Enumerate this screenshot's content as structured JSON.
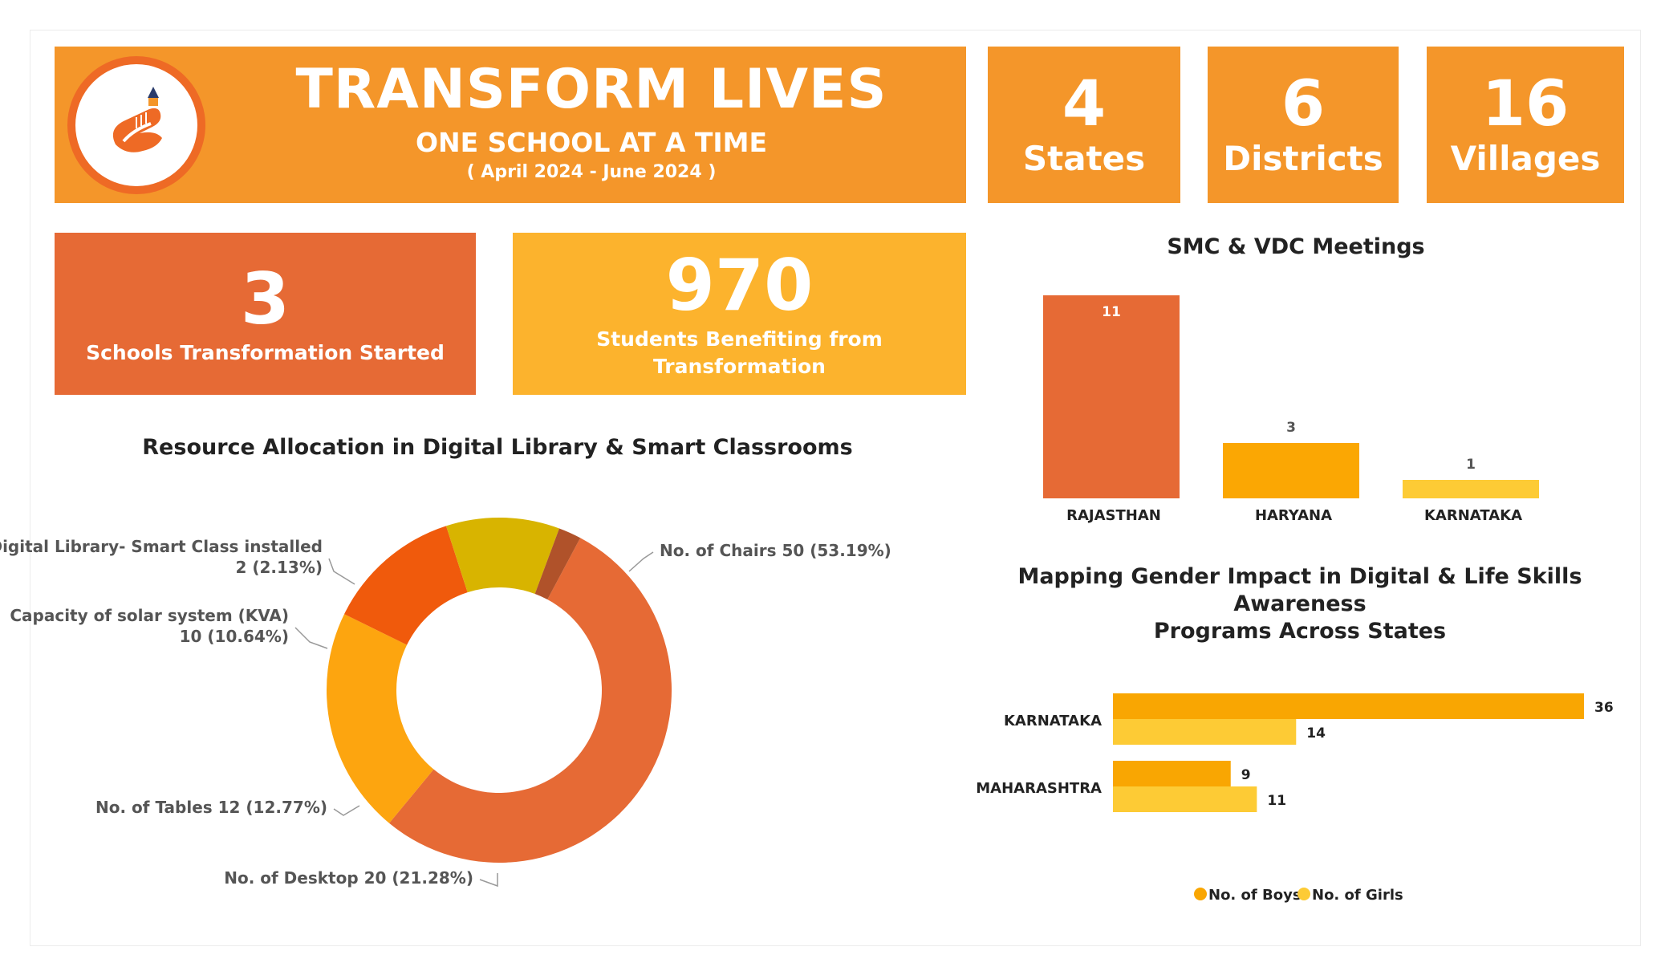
{
  "header": {
    "title": "TRANSFORM LIVES",
    "subtitle": "ONE SCHOOL AT A TIME",
    "date_range": "( April 2024 - June 2024 )",
    "logo_icon": "hand-pencil-logo-icon"
  },
  "stats": {
    "states": {
      "value": "4",
      "label": "States"
    },
    "districts": {
      "value": "6",
      "label": "Districts"
    },
    "villages": {
      "value": "16",
      "label": "Villages"
    }
  },
  "kpis": {
    "schools": {
      "value": "3",
      "label": "Schools Transformation Started"
    },
    "students": {
      "value": "970",
      "label": "Students Benefiting from Transformation"
    }
  },
  "colors": {
    "orange_tile": "#f4962a",
    "red_orange": "#e66a35",
    "yellow_tile": "#fcb32d",
    "boys": "#f9a602",
    "girls": "#fdcb35"
  },
  "chart_data": [
    {
      "type": "pie",
      "title": "Resource Allocation in Digital Library & Smart Classrooms",
      "donut": true,
      "slices": [
        {
          "name": "No. of Chairs",
          "value": 50,
          "label": "No. of Chairs 50 (53.19%)",
          "color": "#e66a35"
        },
        {
          "name": "No. of Desktop",
          "value": 20,
          "label": "No. of Desktop 20 (21.28%)",
          "color": "#fda50f"
        },
        {
          "name": "No. of Tables",
          "value": 12,
          "label": "No. of Tables 12 (12.77%)",
          "color": "#f05a0c"
        },
        {
          "name": "Capacity of solar system (KVA)",
          "value": 10,
          "label": [
            "Capacity of solar system (KVA)",
            "10 (10.64%)"
          ],
          "color": "#d8b400"
        },
        {
          "name": "Digital Library- Smart Class installed",
          "value": 2,
          "label": [
            "Digital Library- Smart Class installed",
            "2 (2.13%)"
          ],
          "color": "#b0522a"
        }
      ]
    },
    {
      "type": "bar",
      "title": "SMC & VDC Meetings",
      "categories": [
        "RAJASTHAN",
        "HARYANA",
        "KARNATAKA"
      ],
      "values": [
        11,
        3,
        1
      ],
      "colors": [
        "#e66a35",
        "#fba703",
        "#fdcb35"
      ],
      "ylim": [
        0,
        11
      ]
    },
    {
      "type": "bar",
      "orientation": "horizontal",
      "title": [
        "Mapping Gender Impact in Digital & Life Skills Awareness",
        "Programs Across States"
      ],
      "categories": [
        "KARNATAKA",
        "MAHARASHTRA"
      ],
      "series": [
        {
          "name": "No. of Boys",
          "values": [
            36,
            9
          ],
          "color": "#f9a602"
        },
        {
          "name": "No. of Girls",
          "values": [
            14,
            11
          ],
          "color": "#fdcb35"
        }
      ],
      "xlim": [
        0,
        36
      ],
      "legend": "bottom-center"
    }
  ]
}
